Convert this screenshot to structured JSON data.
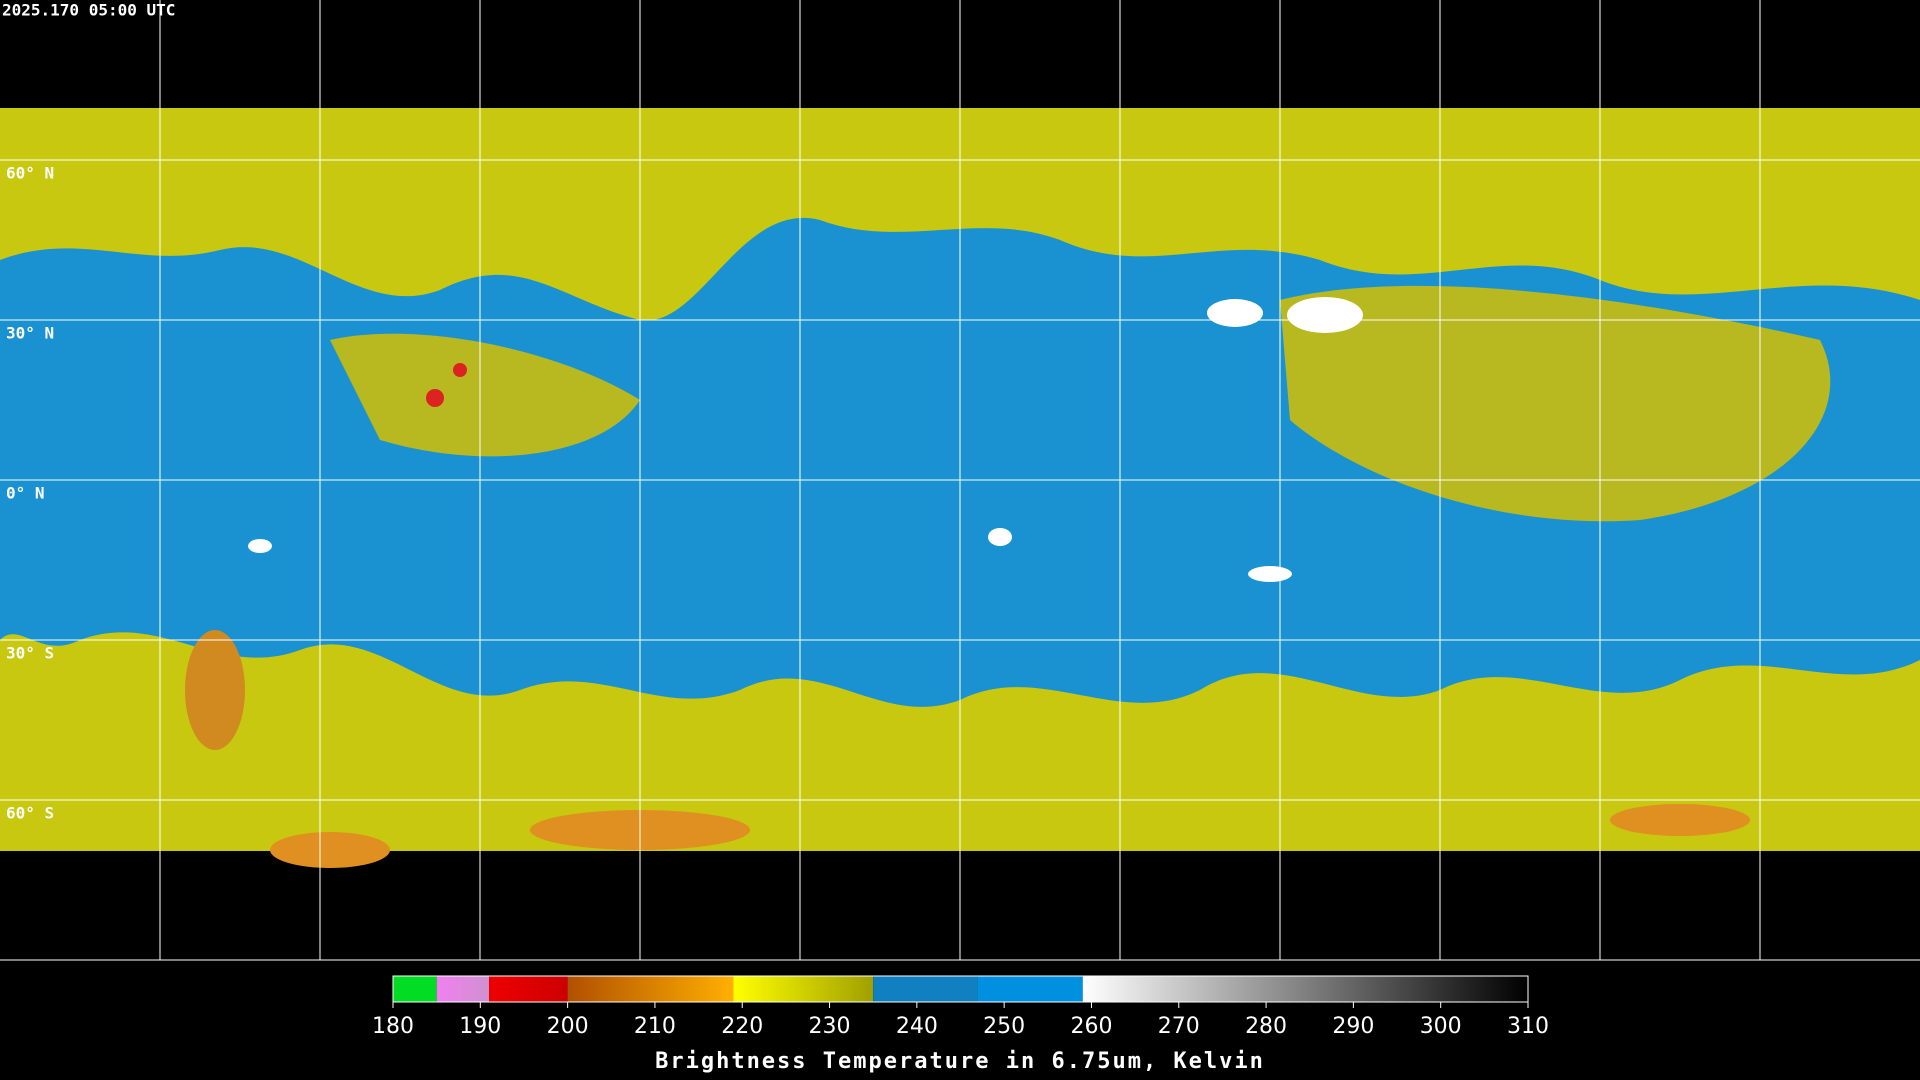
{
  "timestamp": "2025.170 05:00 UTC",
  "lat_labels": [
    "60° N",
    "30° N",
    "0° N",
    "30° S",
    "60° S"
  ],
  "colorbar": {
    "title": "Brightness Temperature in 6.75um, Kelvin",
    "lim": [
      180,
      310
    ],
    "ticks": [
      180,
      190,
      200,
      210,
      220,
      230,
      240,
      250,
      260,
      270,
      280,
      290,
      300,
      310
    ],
    "segments": [
      {
        "from": 180,
        "to": 185,
        "colors": [
          "#00dd22",
          "#00dd22"
        ]
      },
      {
        "from": 185,
        "to": 191,
        "colors": [
          "#f080f0",
          "#d090d0"
        ]
      },
      {
        "from": 191,
        "to": 200,
        "colors": [
          "#ee0000",
          "#cc0000"
        ]
      },
      {
        "from": 200,
        "to": 219,
        "colors": [
          "#b05000",
          "#ffb000"
        ]
      },
      {
        "from": 219,
        "to": 235,
        "colors": [
          "#ffff00",
          "#a0a000"
        ]
      },
      {
        "from": 235,
        "to": 247,
        "colors": [
          "#1080c0",
          "#1080c0"
        ]
      },
      {
        "from": 247,
        "to": 259,
        "colors": [
          "#0090e0",
          "#0090e0"
        ]
      },
      {
        "from": 259,
        "to": 310,
        "colors": [
          "#ffffff",
          "#000000"
        ]
      }
    ]
  }
}
